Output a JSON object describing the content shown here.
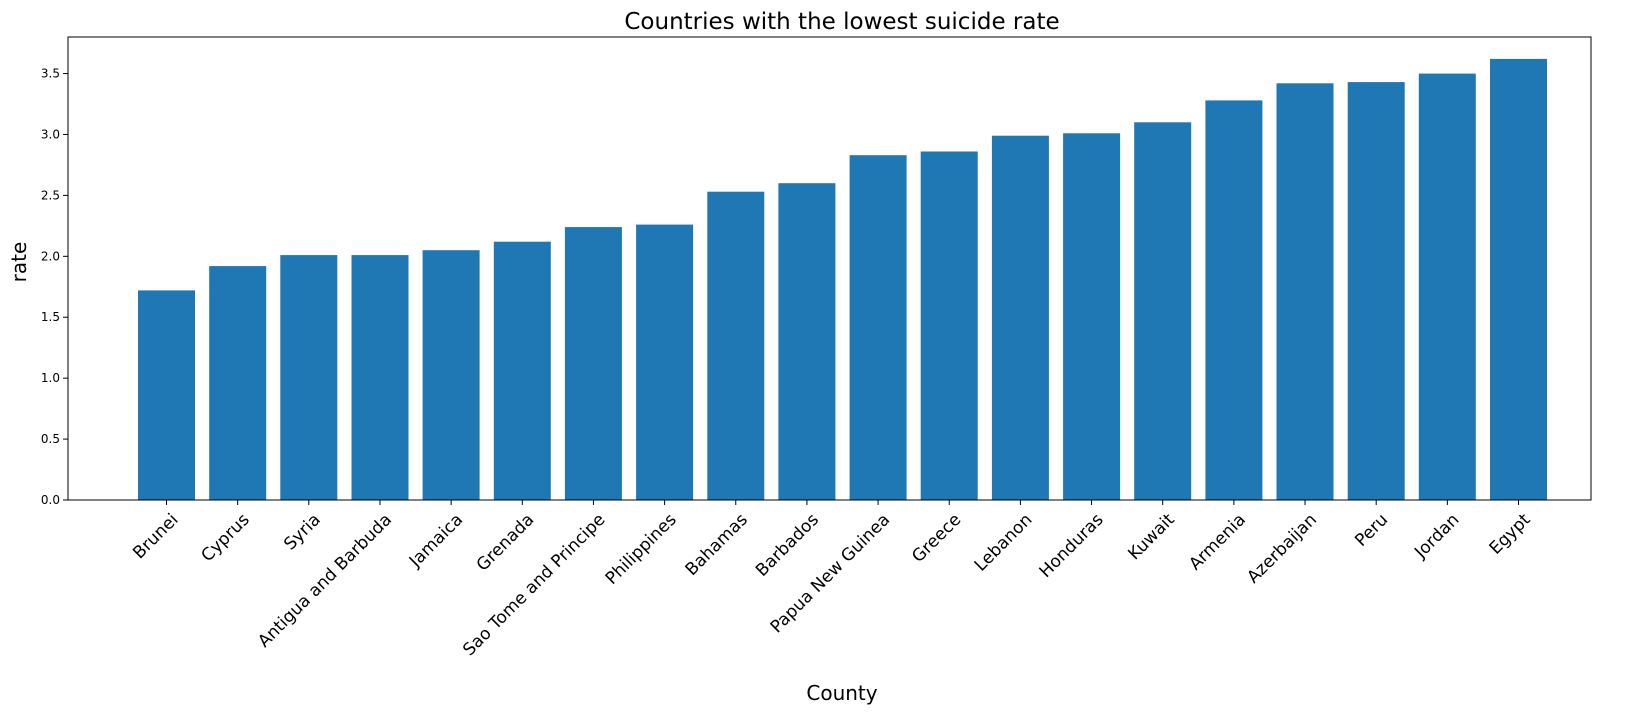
{
  "chart_data": {
    "type": "bar",
    "title": "Countries with the lowest suicide rate",
    "xlabel": "County",
    "ylabel": "rate",
    "categories": [
      "Brunei",
      "Cyprus",
      "Syria",
      "Antigua and Barbuda",
      "Jamaica",
      "Grenada",
      "Sao Tome and Principe",
      "Philippines",
      "Bahamas",
      "Barbados",
      "Papua New Guinea",
      "Greece",
      "Lebanon",
      "Honduras",
      "Kuwait",
      "Armenia",
      "Azerbaijan",
      "Peru",
      "Jordan",
      "Egypt"
    ],
    "values": [
      1.72,
      1.92,
      2.01,
      2.01,
      2.05,
      2.12,
      2.24,
      2.26,
      2.53,
      2.6,
      2.83,
      2.86,
      2.99,
      3.01,
      3.1,
      3.28,
      3.42,
      3.43,
      3.5,
      3.62
    ],
    "ylim": [
      0,
      3.8
    ],
    "yticks": [
      "0.0",
      "0.5",
      "1.0",
      "1.5",
      "2.0",
      "2.5",
      "3.0",
      "3.5"
    ],
    "bar_color": "#1f77b4",
    "grid": false,
    "legend": "none"
  }
}
